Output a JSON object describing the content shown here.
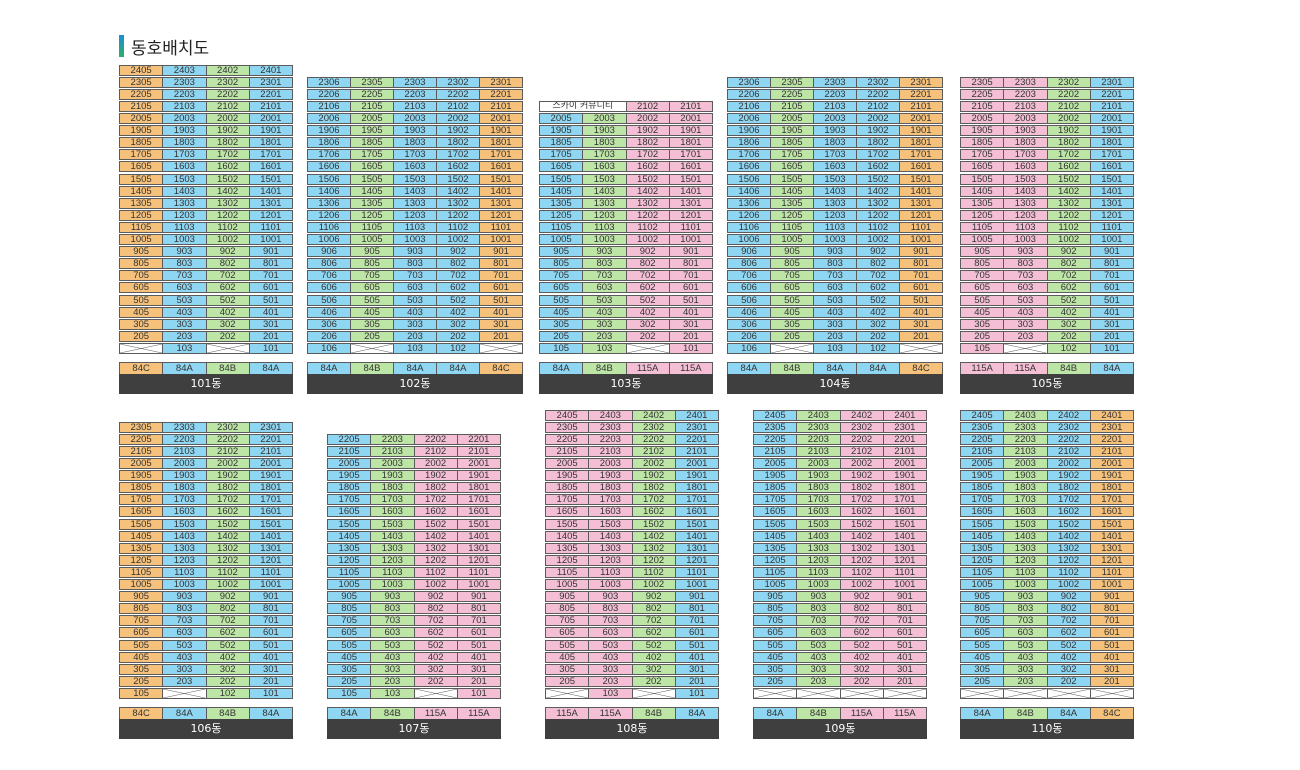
{
  "title": "동호배치도",
  "colors": {
    "O": "#f6c27b",
    "B": "#8fd6f2",
    "G": "#bde5a6",
    "P": "#f4bfd5",
    "title_bar": "#1f8fd6",
    "label_bg": "#3f3f3f"
  },
  "sky_label": "스카이 커뮤니티",
  "buildings": [
    {
      "name": "101동",
      "top_floor": 24,
      "cols": [
        "05",
        "03",
        "02",
        "01"
      ],
      "colors": [
        "O",
        "B",
        "G",
        "B"
      ],
      "types": [
        "84C",
        "84A",
        "84B",
        "84A"
      ],
      "empty": [
        "105",
        "102"
      ],
      "sky": null
    },
    {
      "name": "102동",
      "top_floor": 23,
      "cols": [
        "06",
        "05",
        "03",
        "02",
        "01"
      ],
      "colors": [
        "B",
        "G",
        "B",
        "B",
        "O"
      ],
      "types": [
        "84A",
        "84B",
        "84A",
        "84A",
        "84C"
      ],
      "empty": [
        "105",
        "101"
      ],
      "sky": null
    },
    {
      "name": "103동",
      "top_floor": 21,
      "cols": [
        "05",
        "03",
        "02",
        "01"
      ],
      "colors": [
        "B",
        "G",
        "P",
        "P"
      ],
      "types": [
        "84A",
        "84B",
        "115A",
        "115A"
      ],
      "empty": [
        "102"
      ],
      "sky": {
        "floor": 21,
        "cols": [
          0,
          1
        ]
      }
    },
    {
      "name": "104동",
      "top_floor": 23,
      "cols": [
        "06",
        "05",
        "03",
        "02",
        "01"
      ],
      "colors": [
        "B",
        "G",
        "B",
        "B",
        "O"
      ],
      "types": [
        "84A",
        "84B",
        "84A",
        "84A",
        "84C"
      ],
      "empty": [
        "105",
        "101"
      ],
      "sky": null
    },
    {
      "name": "105동",
      "top_floor": 23,
      "cols": [
        "05",
        "03",
        "02",
        "01"
      ],
      "colors": [
        "P",
        "P",
        "G",
        "B"
      ],
      "types": [
        "115A",
        "115A",
        "84B",
        "84A"
      ],
      "empty": [
        "103"
      ],
      "sky": null
    },
    {
      "name": "106동",
      "top_floor": 23,
      "cols": [
        "05",
        "03",
        "02",
        "01"
      ],
      "colors": [
        "O",
        "B",
        "G",
        "B"
      ],
      "types": [
        "84C",
        "84A",
        "84B",
        "84A"
      ],
      "empty": [
        "103"
      ],
      "sky": null
    },
    {
      "name": "107동",
      "top_floor": 22,
      "cols": [
        "05",
        "03",
        "02",
        "01"
      ],
      "colors": [
        "B",
        "G",
        "P",
        "P"
      ],
      "types": [
        "84A",
        "84B",
        "115A",
        "115A"
      ],
      "empty": [
        "102"
      ],
      "sky": null
    },
    {
      "name": "108동",
      "top_floor": 24,
      "cols": [
        "05",
        "03",
        "02",
        "01"
      ],
      "colors": [
        "P",
        "P",
        "G",
        "B"
      ],
      "types": [
        "115A",
        "115A",
        "84B",
        "84A"
      ],
      "empty": [
        "105",
        "102"
      ],
      "sky": null
    },
    {
      "name": "109동",
      "top_floor": 24,
      "cols": [
        "05",
        "03",
        "02",
        "01"
      ],
      "colors": [
        "B",
        "G",
        "P",
        "P"
      ],
      "types": [
        "84A",
        "84B",
        "115A",
        "115A"
      ],
      "empty": [
        "105",
        "103",
        "102",
        "101"
      ],
      "sky": null
    },
    {
      "name": "110동",
      "top_floor": 24,
      "cols": [
        "05",
        "03",
        "02",
        "01"
      ],
      "colors": [
        "B",
        "G",
        "B",
        "O"
      ],
      "types": [
        "84A",
        "84B",
        "84A",
        "84C"
      ],
      "empty": [
        "105",
        "103",
        "102",
        "101"
      ],
      "sky": null
    }
  ]
}
